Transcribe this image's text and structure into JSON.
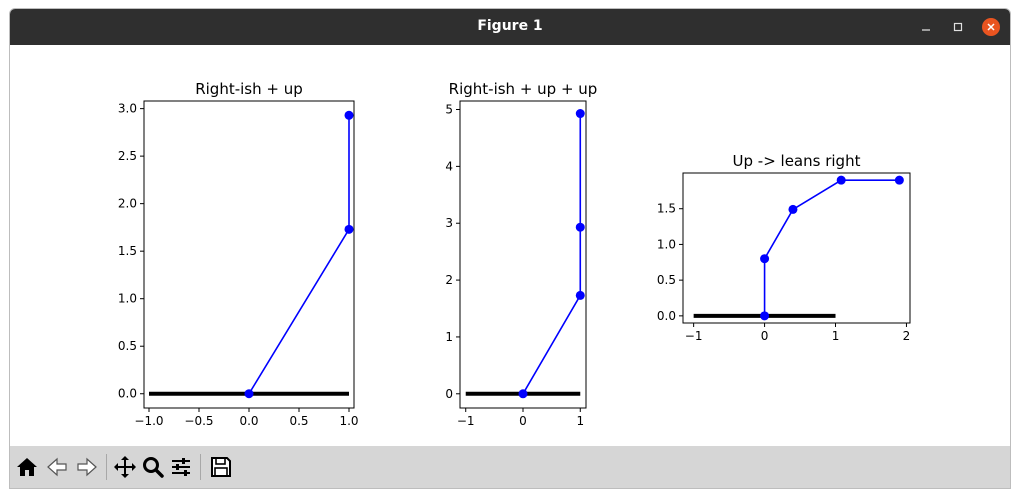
{
  "window": {
    "title": "Figure 1"
  },
  "toolbar": {
    "buttons": [
      {
        "name": "home-icon"
      },
      {
        "name": "back-icon"
      },
      {
        "name": "forward-icon"
      },
      {
        "name": "pan-icon"
      },
      {
        "name": "zoom-icon"
      },
      {
        "name": "configure-subplots-icon"
      },
      {
        "name": "save-icon"
      }
    ]
  },
  "colors": {
    "line": "#0000ff",
    "baseline": "#000000",
    "titlebar": "#2f2f2f",
    "close": "#e95420",
    "toolbar": "#d6d6d6"
  },
  "chart_data": [
    {
      "type": "line",
      "title": "Right-ish + up",
      "xlim": [
        -1.05,
        1.05
      ],
      "ylim": [
        -0.15,
        3.08
      ],
      "xticks": [
        -1.0,
        -0.5,
        0.0,
        0.5,
        1.0
      ],
      "xtick_labels": [
        "−1.0",
        "−0.5",
        "0.0",
        "0.5",
        "1.0"
      ],
      "yticks": [
        0.0,
        0.5,
        1.0,
        1.5,
        2.0,
        2.5,
        3.0
      ],
      "ytick_labels": [
        "0.0",
        "0.5",
        "1.0",
        "1.5",
        "2.0",
        "2.5",
        "3.0"
      ],
      "baseline": {
        "x": [
          -1,
          1
        ],
        "y": 0
      },
      "series": [
        {
          "x": [
            0.0,
            1.0,
            1.0
          ],
          "y": [
            0.0,
            1.73,
            2.93
          ]
        }
      ]
    },
    {
      "type": "line",
      "title": "Right-ish + up + up",
      "xlim": [
        -1.1,
        1.1
      ],
      "ylim": [
        -0.25,
        5.15
      ],
      "xticks": [
        -1,
        0,
        1
      ],
      "xtick_labels": [
        "−1",
        "0",
        "1"
      ],
      "yticks": [
        0,
        1,
        2,
        3,
        4,
        5
      ],
      "ytick_labels": [
        "0",
        "1",
        "2",
        "3",
        "4",
        "5"
      ],
      "baseline": {
        "x": [
          -1,
          1
        ],
        "y": 0
      },
      "series": [
        {
          "x": [
            0.0,
            1.0,
            1.0,
            1.0
          ],
          "y": [
            0.0,
            1.73,
            2.93,
            4.93
          ]
        }
      ]
    },
    {
      "type": "line",
      "title": "Up -> leans right",
      "xlim": [
        -1.15,
        2.05
      ],
      "ylim": [
        -0.1,
        2.0
      ],
      "xticks": [
        -1,
        0,
        1,
        2
      ],
      "xtick_labels": [
        "−1",
        "0",
        "1",
        "2"
      ],
      "yticks": [
        0.0,
        0.5,
        1.0,
        1.5
      ],
      "ytick_labels": [
        "0.0",
        "0.5",
        "1.0",
        "1.5"
      ],
      "baseline": {
        "x": [
          -1,
          1
        ],
        "y": 0
      },
      "series": [
        {
          "x": [
            0.0,
            0.0,
            0.4,
            1.08,
            1.9
          ],
          "y": [
            0.0,
            0.8,
            1.49,
            1.9,
            1.9
          ]
        }
      ]
    }
  ]
}
